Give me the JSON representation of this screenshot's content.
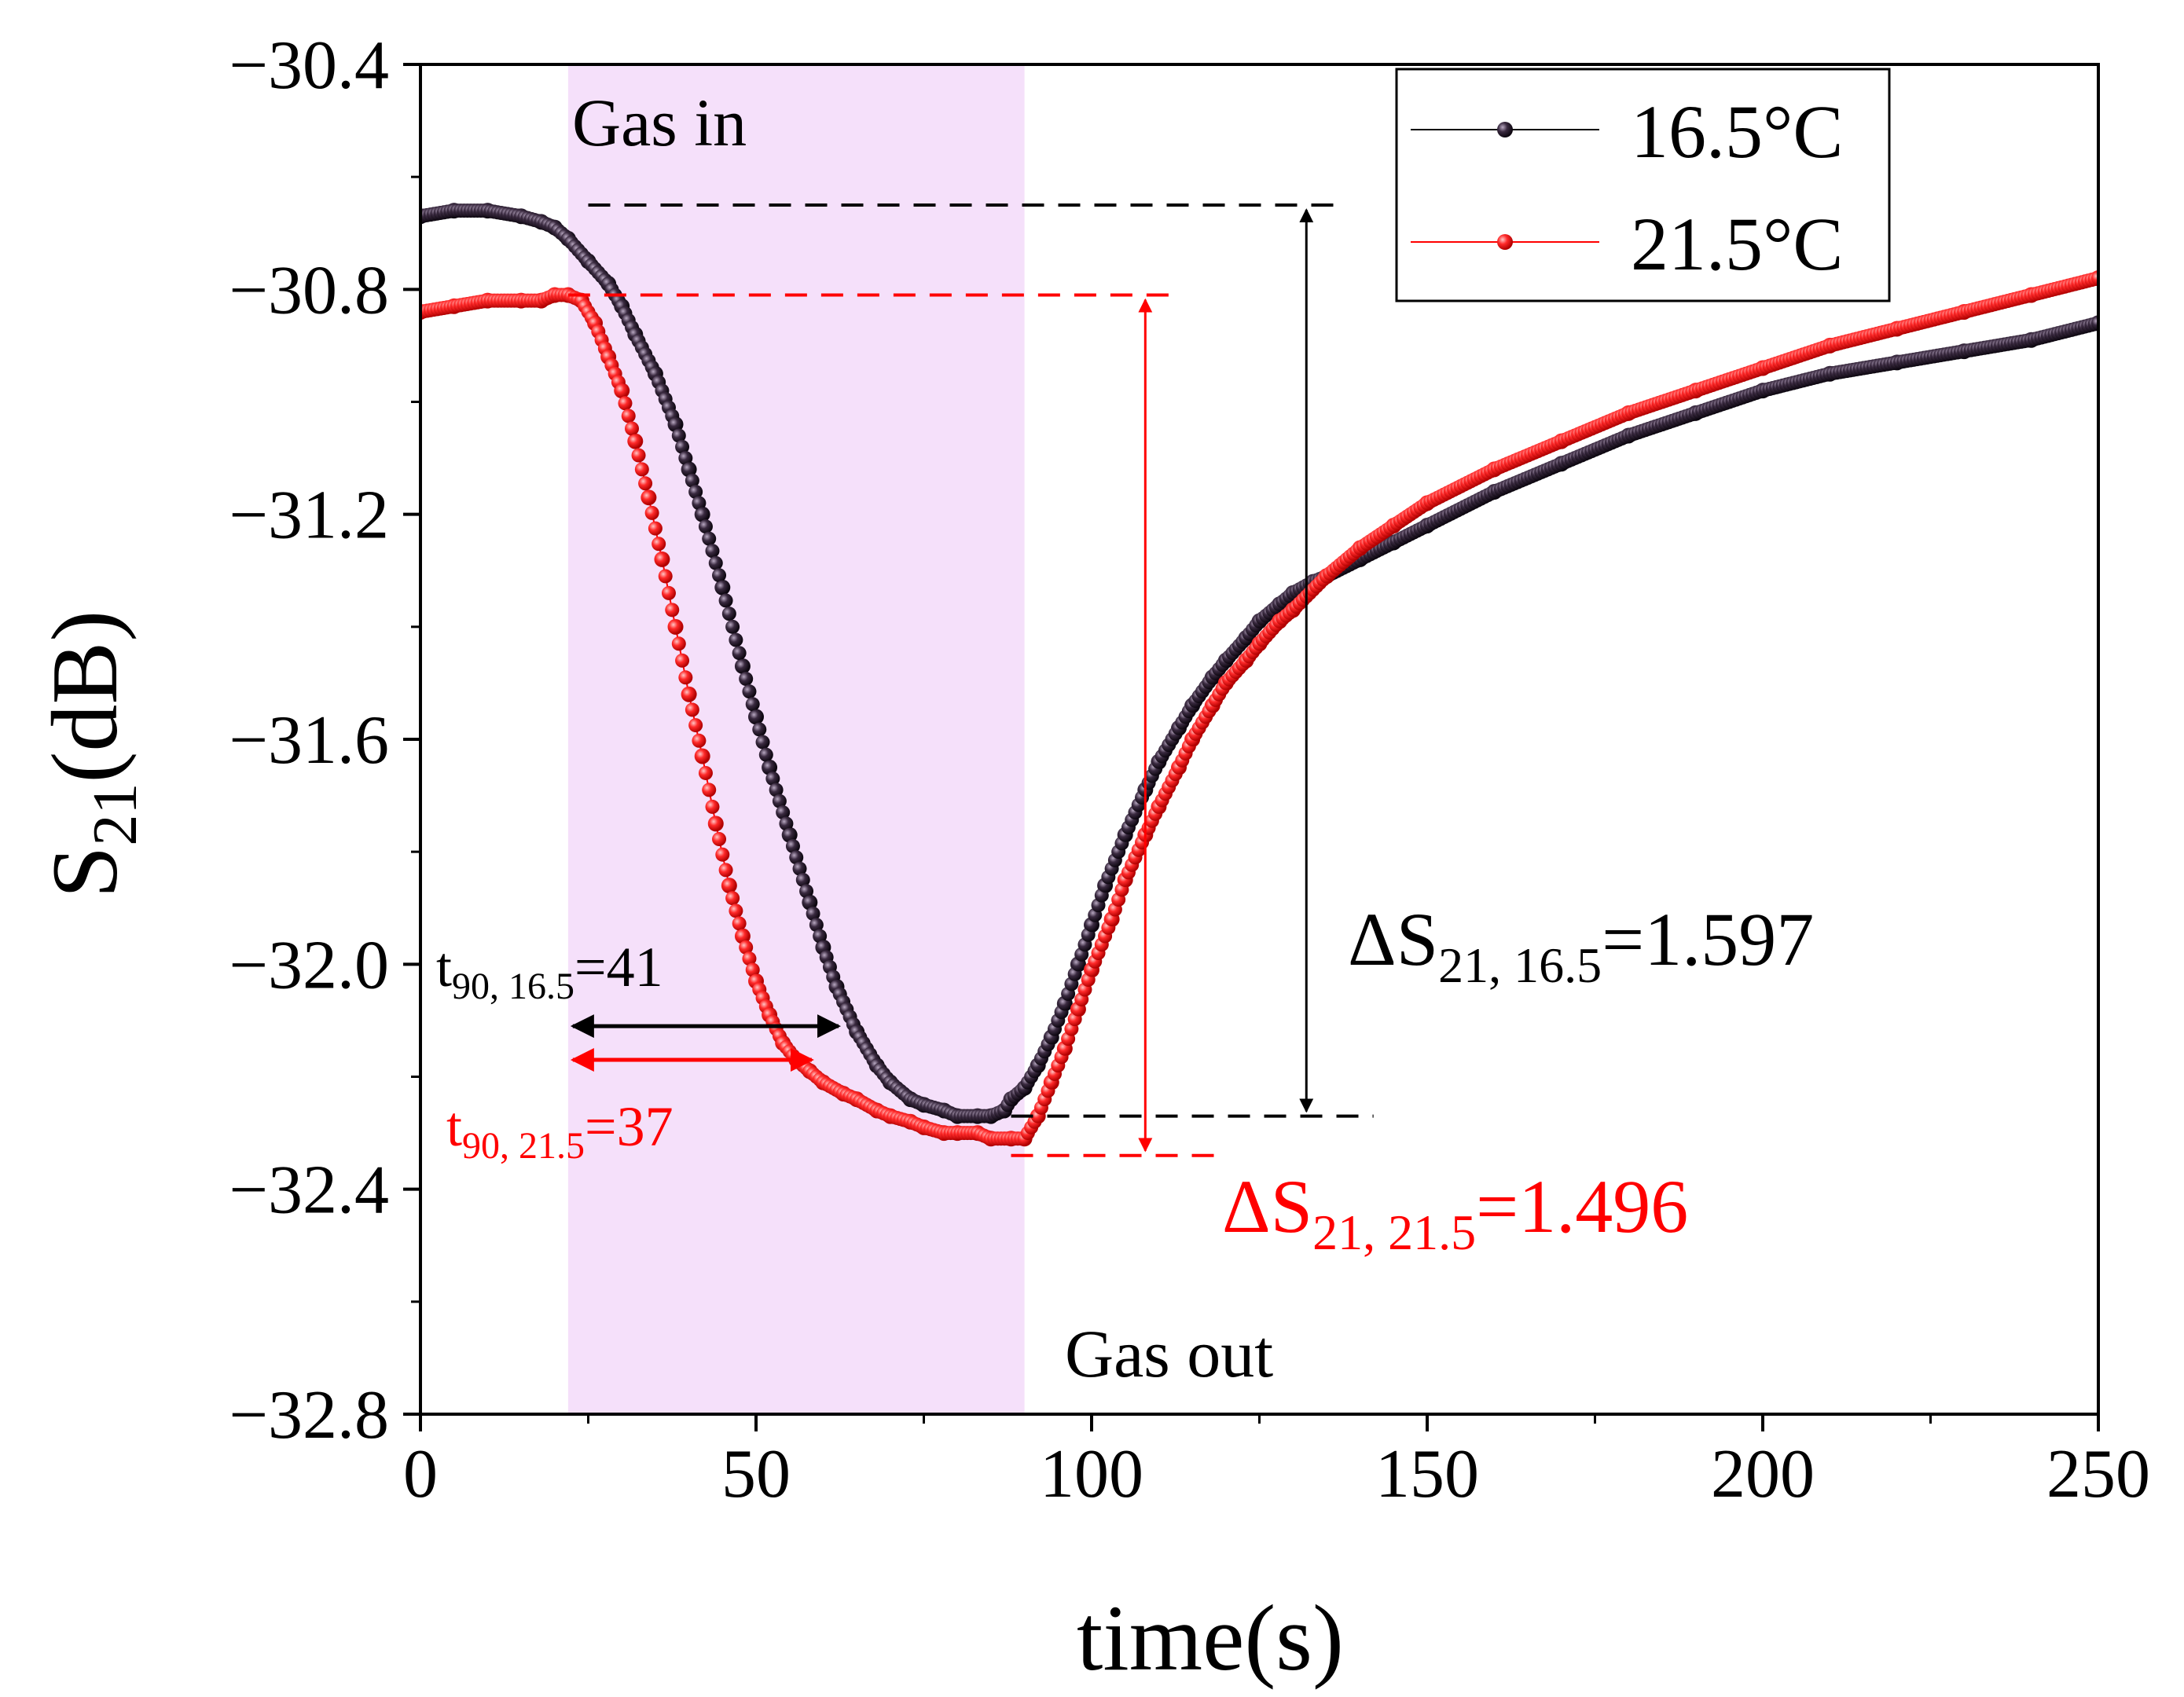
{
  "chart_data": {
    "type": "scatter",
    "title": "",
    "xlabel": "time(s)",
    "ylabel_main": "S",
    "ylabel_sub": "21",
    "ylabel_unit": "(dB)",
    "xlim": [
      0,
      250
    ],
    "ylim": [
      -32.8,
      -30.4
    ],
    "xticks": [
      0,
      50,
      100,
      150,
      200,
      250
    ],
    "xtick_labels": [
      "0",
      "50",
      "100",
      "150",
      "200",
      "250"
    ],
    "yticks": [
      -30.4,
      -30.8,
      -31.2,
      -31.6,
      -32.0,
      -32.4,
      -32.8
    ],
    "ytick_labels": [
      "−30.4",
      "−30.8",
      "−31.2",
      "−31.6",
      "−32.0",
      "−32.4",
      "−32.8"
    ],
    "grid": false,
    "legend_position": "top-right",
    "shaded_region": {
      "x_start": 22,
      "x_end": 90,
      "color": "#f5e0fa",
      "label_start": "Gas in",
      "label_end": "Gas out"
    },
    "series": [
      {
        "name": "16.5°C",
        "color": "#000000",
        "marker_color": "#2a1e2e",
        "x": [
          0,
          5,
          10,
          15,
          18,
          20,
          22,
          25,
          28,
          30,
          32,
          35,
          38,
          40,
          42,
          45,
          48,
          50,
          52,
          55,
          58,
          60,
          62,
          65,
          68,
          70,
          73,
          75,
          78,
          80,
          83,
          85,
          87,
          88,
          90,
          92,
          94,
          96,
          98,
          100,
          102,
          105,
          108,
          110,
          113,
          115,
          118,
          120,
          123,
          125,
          128,
          130,
          133,
          135,
          140,
          145,
          150,
          160,
          170,
          180,
          190,
          200,
          210,
          220,
          230,
          240,
          250
        ],
        "y": [
          -30.67,
          -30.66,
          -30.66,
          -30.67,
          -30.68,
          -30.69,
          -30.71,
          -30.75,
          -30.79,
          -30.83,
          -30.88,
          -30.95,
          -31.04,
          -31.12,
          -31.2,
          -31.33,
          -31.47,
          -31.56,
          -31.65,
          -31.77,
          -31.89,
          -31.97,
          -32.04,
          -32.12,
          -32.18,
          -32.21,
          -32.24,
          -32.25,
          -32.26,
          -32.27,
          -32.27,
          -32.27,
          -32.26,
          -32.24,
          -32.22,
          -32.18,
          -32.13,
          -32.07,
          -32.0,
          -31.93,
          -31.86,
          -31.77,
          -31.69,
          -31.64,
          -31.58,
          -31.54,
          -31.49,
          -31.46,
          -31.42,
          -31.39,
          -31.36,
          -31.34,
          -31.32,
          -31.31,
          -31.28,
          -31.25,
          -31.22,
          -31.16,
          -31.11,
          -31.06,
          -31.02,
          -30.98,
          -30.95,
          -30.93,
          -30.91,
          -30.89,
          -30.86
        ]
      },
      {
        "name": "21.5°C",
        "color": "#ff0000",
        "marker_color": "#ff2a2a",
        "x": [
          0,
          5,
          10,
          15,
          18,
          20,
          22,
          24,
          26,
          28,
          30,
          32,
          34,
          36,
          38,
          40,
          42,
          44,
          46,
          48,
          50,
          52,
          54,
          56,
          58,
          60,
          63,
          65,
          68,
          70,
          73,
          75,
          78,
          80,
          83,
          85,
          88,
          90,
          92,
          94,
          96,
          98,
          100,
          103,
          105,
          108,
          110,
          113,
          115,
          118,
          120,
          123,
          125,
          128,
          130,
          135,
          140,
          145,
          150,
          160,
          170,
          180,
          190,
          200,
          210,
          220,
          230,
          240,
          250
        ],
        "y": [
          -30.84,
          -30.83,
          -30.82,
          -30.82,
          -30.82,
          -30.81,
          -30.81,
          -30.82,
          -30.86,
          -30.92,
          -30.98,
          -31.07,
          -31.17,
          -31.28,
          -31.4,
          -31.52,
          -31.63,
          -31.75,
          -31.86,
          -31.95,
          -32.03,
          -32.09,
          -32.14,
          -32.17,
          -32.19,
          -32.21,
          -32.23,
          -32.24,
          -32.26,
          -32.27,
          -32.28,
          -32.29,
          -32.3,
          -32.3,
          -32.3,
          -32.31,
          -32.31,
          -32.31,
          -32.27,
          -32.21,
          -32.15,
          -32.08,
          -32.01,
          -31.92,
          -31.85,
          -31.77,
          -31.72,
          -31.65,
          -31.6,
          -31.54,
          -31.5,
          -31.46,
          -31.43,
          -31.39,
          -31.37,
          -31.31,
          -31.26,
          -31.22,
          -31.18,
          -31.12,
          -31.07,
          -31.02,
          -30.98,
          -30.94,
          -30.9,
          -30.87,
          -30.84,
          -30.81,
          -30.78
        ]
      }
    ],
    "annotations": {
      "delta_black": {
        "prefix": "ΔS",
        "sub": "21, 16.5",
        "suffix": "=1.597",
        "y_top": -30.65,
        "y_bottom": -32.27,
        "arrow_x": 132,
        "dash_x_start": 25,
        "dash_top_x_end": 137,
        "dash_bottom_x_end": 142,
        "color": "#000000"
      },
      "delta_red": {
        "prefix": "ΔS",
        "sub": "21, 21.5",
        "suffix": "=1.496",
        "y_top": -30.81,
        "y_bottom": -32.34,
        "arrow_x": 108,
        "dash_x_start": 22,
        "dash_top_x_end": 112,
        "dash_bottom_x_end": 119,
        "color": "#ff0000"
      },
      "t90_black": {
        "prefix": "t",
        "sub": "90, 16.5",
        "suffix": "=41",
        "x_start": 22,
        "x_end": 63,
        "y": -32.11,
        "color": "#000000"
      },
      "t90_red": {
        "prefix": "t",
        "sub": "90, 21.5",
        "suffix": "=37",
        "x_start": 22,
        "x_end": 59,
        "y": -32.17,
        "color": "#ff0000"
      }
    }
  }
}
